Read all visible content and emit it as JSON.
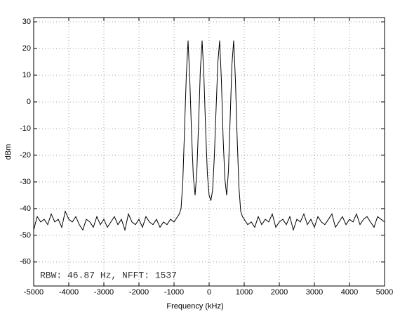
{
  "chart_data": {
    "type": "line",
    "xlabel": "Frequency (kHz)",
    "ylabel": "dBm",
    "annotation": "RBW: 46.87 Hz, NFFT: 1537",
    "color": "#000000",
    "grid": true,
    "xlim": [
      -5000,
      5000
    ],
    "ylim": [
      -69,
      31.6
    ],
    "xticks": [
      -5000,
      -4000,
      -3000,
      -2000,
      -1000,
      0,
      1000,
      2000,
      3000,
      4000,
      5000
    ],
    "yticks": [
      -60,
      -50,
      -40,
      -30,
      -20,
      -10,
      0,
      10,
      20,
      30
    ],
    "x": [
      -5000,
      -4900,
      -4800,
      -4700,
      -4600,
      -4500,
      -4400,
      -4300,
      -4200,
      -4100,
      -4000,
      -3900,
      -3800,
      -3700,
      -3600,
      -3500,
      -3400,
      -3300,
      -3200,
      -3100,
      -3000,
      -2900,
      -2800,
      -2700,
      -2600,
      -2500,
      -2400,
      -2300,
      -2200,
      -2100,
      -2000,
      -1900,
      -1800,
      -1700,
      -1600,
      -1500,
      -1400,
      -1300,
      -1200,
      -1100,
      -1000,
      -900,
      -850,
      -800,
      -750,
      -700,
      -650,
      -600,
      -550,
      -500,
      -450,
      -400,
      -350,
      -300,
      -250,
      -200,
      -150,
      -100,
      -50,
      0,
      50,
      100,
      150,
      200,
      250,
      300,
      350,
      400,
      450,
      500,
      550,
      600,
      650,
      700,
      750,
      800,
      850,
      900,
      950,
      1000,
      1100,
      1200,
      1300,
      1400,
      1500,
      1600,
      1700,
      1800,
      1900,
      2000,
      2100,
      2200,
      2300,
      2400,
      2500,
      2600,
      2700,
      2800,
      2900,
      3000,
      3100,
      3200,
      3300,
      3400,
      3500,
      3600,
      3700,
      3800,
      3900,
      4000,
      4100,
      4200,
      4300,
      4400,
      4500,
      4600,
      4700,
      4800,
      4900,
      5000
    ],
    "values": [
      -48,
      -43,
      -45,
      -44,
      -46,
      -42,
      -45,
      -44,
      -47,
      -41,
      -44,
      -45,
      -43,
      -46,
      -48,
      -44,
      -45,
      -47,
      -43,
      -46,
      -44,
      -47,
      -45,
      -43,
      -46,
      -44,
      -48,
      -42,
      -45,
      -46,
      -44,
      -47,
      -43,
      -45,
      -46,
      -44,
      -47,
      -45,
      -46,
      -44,
      -45,
      -43,
      -42,
      -40,
      -30,
      -10,
      10,
      23,
      8,
      -12,
      -28,
      -35,
      -26,
      -8,
      12,
      23,
      10,
      -10,
      -27,
      -35,
      -37,
      -33,
      -20,
      -2,
      15,
      23,
      8,
      -14,
      -29,
      -35,
      -26,
      -6,
      14,
      23,
      8,
      -14,
      -32,
      -41,
      -43,
      -44,
      -46,
      -45,
      -47,
      -43,
      -46,
      -44,
      -45,
      -42,
      -47,
      -45,
      -44,
      -46,
      -43,
      -48,
      -44,
      -45,
      -42,
      -46,
      -44,
      -47,
      -43,
      -45,
      -46,
      -44,
      -42,
      -47,
      -45,
      -43,
      -46,
      -44,
      -45,
      -42,
      -46,
      -44,
      -43,
      -45,
      -47,
      -43,
      -44,
      -45
    ]
  }
}
